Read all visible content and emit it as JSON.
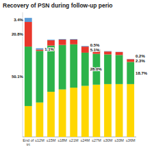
{
  "chart_data": {
    "type": "bar",
    "stacked": true,
    "title": "Recovery of PSN during follow-up perio",
    "categories": [
      "End of\ntrt",
      "≤12M",
      "≤15M",
      "≤18M",
      "≤21M",
      "≤24M",
      "≤27M",
      "≤30M",
      "≤33M",
      "≤36M"
    ],
    "series": [
      {
        "color": "#FFD700",
        "values": [
          26.0,
          29.0,
          38.0,
          40.0,
          41.5,
          43.0,
          44.0,
          44.5,
          44.5,
          44.5
        ]
      },
      {
        "color": "#2db34a",
        "values": [
          50.1,
          43.5,
          39.0,
          37.5,
          36.5,
          28.0,
          26.0,
          25.0,
          24.5,
          18.7
        ],
        "value_labels": [
          "50.1%",
          null,
          null,
          null,
          null,
          "28.0%",
          null,
          null,
          null,
          "18.7%"
        ]
      },
      {
        "color": "#e8372b",
        "values": [
          20.8,
          1.1,
          4.5,
          4.5,
          4.0,
          5.1,
          3.5,
          2.5,
          2.5,
          2.3
        ],
        "value_labels": [
          "20.8%",
          null,
          null,
          null,
          null,
          "5.1%",
          null,
          null,
          null,
          "2.3%"
        ]
      },
      {
        "color": "#5b9bd5",
        "values": [
          3.4,
          1.1,
          0.5,
          0.5,
          0.5,
          0.5,
          0.5,
          0.3,
          0.2,
          0.2
        ],
        "value_labels": [
          "3.4%",
          "1.1%",
          null,
          null,
          null,
          "0.5%",
          null,
          null,
          null,
          "0.2%"
        ]
      }
    ],
    "ylim": [
      0,
      105
    ],
    "tick_labels": "x"
  }
}
